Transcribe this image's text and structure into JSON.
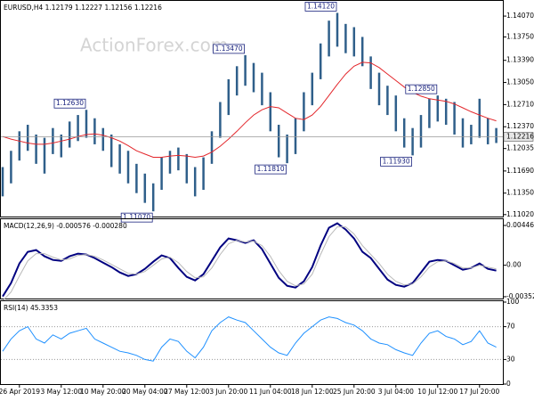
{
  "chart_data": [
    {
      "type": "range",
      "title": "EURUSD,H4  1.12179 1.12227 1.12156 1.12216",
      "watermark": "ActionForex.com",
      "color": "#2f5f8a",
      "high": [
        1.1175,
        1.12,
        1.123,
        1.124,
        1.1225,
        1.122,
        1.1235,
        1.1225,
        1.1245,
        1.1255,
        1.1263,
        1.125,
        1.1235,
        1.1225,
        1.121,
        1.12,
        1.118,
        1.1165,
        1.115,
        1.119,
        1.12,
        1.1205,
        1.1195,
        1.1175,
        1.119,
        1.123,
        1.1275,
        1.131,
        1.133,
        1.1347,
        1.1335,
        1.132,
        1.129,
        1.124,
        1.1225,
        1.125,
        1.129,
        1.132,
        1.1365,
        1.14,
        1.1412,
        1.1395,
        1.139,
        1.1375,
        1.1345,
        1.132,
        1.13,
        1.1285,
        1.125,
        1.1235,
        1.1255,
        1.128,
        1.1285,
        1.128,
        1.1275,
        1.125,
        1.124,
        1.128,
        1.125,
        1.1235
      ],
      "low": [
        1.113,
        1.115,
        1.1185,
        1.12,
        1.118,
        1.1165,
        1.1195,
        1.119,
        1.1205,
        1.1215,
        1.122,
        1.121,
        1.12,
        1.1175,
        1.1165,
        1.115,
        1.1135,
        1.112,
        1.1107,
        1.114,
        1.1165,
        1.117,
        1.115,
        1.113,
        1.114,
        1.118,
        1.122,
        1.1255,
        1.1285,
        1.13,
        1.129,
        1.127,
        1.123,
        1.119,
        1.1181,
        1.1195,
        1.123,
        1.127,
        1.131,
        1.1345,
        1.136,
        1.135,
        1.1345,
        1.133,
        1.1295,
        1.127,
        1.1255,
        1.123,
        1.1205,
        1.1193,
        1.1205,
        1.1235,
        1.1245,
        1.124,
        1.1225,
        1.1205,
        1.121,
        1.122,
        1.121,
        1.1212
      ],
      "overlay": {
        "color": "#e3262b",
        "values": [
          1.1222,
          1.1218,
          1.1215,
          1.1212,
          1.121,
          1.121,
          1.1212,
          1.1215,
          1.1218,
          1.1222,
          1.1225,
          1.1226,
          1.1224,
          1.122,
          1.1215,
          1.1208,
          1.12,
          1.1195,
          1.119,
          1.119,
          1.1192,
          1.1193,
          1.1192,
          1.119,
          1.1192,
          1.1198,
          1.1207,
          1.1218,
          1.123,
          1.1243,
          1.1255,
          1.1263,
          1.1268,
          1.1266,
          1.1258,
          1.125,
          1.1248,
          1.1255,
          1.1268,
          1.1285,
          1.1302,
          1.1318,
          1.133,
          1.1336,
          1.1335,
          1.1328,
          1.1318,
          1.1308,
          1.1298,
          1.129,
          1.1284,
          1.128,
          1.1278,
          1.1276,
          1.1272,
          1.1266,
          1.126,
          1.1255,
          1.125,
          1.1246
        ]
      },
      "annotations": [
        {
          "index": 10,
          "value": 1.1263,
          "label": "1.12630"
        },
        {
          "index": 18,
          "value": 1.1107,
          "label": "1.11070"
        },
        {
          "index": 29,
          "value": 1.1347,
          "label": "1.13470"
        },
        {
          "index": 34,
          "value": 1.1181,
          "label": "1.11810"
        },
        {
          "index": 40,
          "value": 1.1412,
          "label": "1.14120"
        },
        {
          "index": 49,
          "value": 1.1193,
          "label": "1.11930"
        },
        {
          "index": 52,
          "value": 1.1285,
          "label": "1.12850"
        }
      ],
      "last": {
        "value": 1.12216,
        "label": "1.12216"
      },
      "ylim": [
        1.1099,
        1.1429
      ],
      "yticks": [
        {
          "value": 1.1407,
          "label": "1.14070"
        },
        {
          "value": 1.1375,
          "label": "1.13750"
        },
        {
          "value": 1.1339,
          "label": "1.13390"
        },
        {
          "value": 1.1305,
          "label": "1.13050"
        },
        {
          "value": 1.1271,
          "label": "1.12710"
        },
        {
          "value": 1.1237,
          "label": "1.12370"
        },
        {
          "value": 1.12035,
          "label": "1.12035"
        },
        {
          "value": 1.1169,
          "label": "1.11690"
        },
        {
          "value": 1.1135,
          "label": "1.11350"
        },
        {
          "value": 1.1102,
          "label": "1.11020"
        }
      ]
    },
    {
      "type": "line",
      "title": "MACD(12,26,9) -0.000576 -0.000280",
      "series": [
        {
          "color": "#000080",
          "width": 2,
          "values": [
            -0.0035,
            -0.002,
            0.0002,
            0.0015,
            0.0017,
            0.001,
            0.0006,
            0.0005,
            0.001,
            0.0013,
            0.0012,
            0.0008,
            0.0003,
            -0.0002,
            -0.0008,
            -0.0012,
            -0.001,
            -0.0004,
            0.0004,
            0.0011,
            0.0008,
            -0.0003,
            -0.0013,
            -0.0017,
            -0.001,
            0.0005,
            0.002,
            0.003,
            0.0028,
            0.0025,
            0.0028,
            0.0018,
            0.0002,
            -0.0014,
            -0.0023,
            -0.0025,
            -0.0018,
            -0.0002,
            0.0022,
            0.0042,
            0.0047,
            0.004,
            0.003,
            0.0015,
            0.0008,
            -0.0004,
            -0.0016,
            -0.0022,
            -0.0024,
            -0.002,
            -0.0008,
            0.0004,
            0.0006,
            0.0005,
            0,
            -0.0005,
            -0.0003,
            0.0002,
            -0.0004,
            -0.0006
          ]
        },
        {
          "color": "#b8b8b8",
          "width": 1,
          "values": [
            -0.004,
            -0.003,
            -0.0012,
            0.0005,
            0.0013,
            0.0013,
            0.0009,
            0.0006,
            0.0007,
            0.0011,
            0.0012,
            0.001,
            0.0006,
            0.0001,
            -0.0004,
            -0.0009,
            -0.001,
            -0.0007,
            0,
            0.0007,
            0.0009,
            0.0003,
            -0.0007,
            -0.0014,
            -0.0013,
            -0.0003,
            0.0012,
            0.0024,
            0.0028,
            0.0026,
            0.0027,
            0.0022,
            0.001,
            -0.0006,
            -0.0018,
            -0.0023,
            -0.0021,
            -0.001,
            0.0012,
            0.0032,
            0.0043,
            0.0043,
            0.0035,
            0.0022,
            0.0012,
            0.0002,
            -0.001,
            -0.0018,
            -0.0022,
            -0.0021,
            -0.0013,
            -0.0002,
            0.0004,
            0.0005,
            0.0002,
            -0.0003,
            -0.0003,
            0,
            -0.0002,
            -0.0004
          ]
        }
      ],
      "ylim": [
        -0.00373,
        0.00506
      ],
      "yticks": [
        0.004461,
        {
          "value": 0,
          "label": "0.00"
        },
        -0.003526
      ]
    },
    {
      "type": "line",
      "title": "RSI(14) 45.3353",
      "series": [
        {
          "color": "#1e90ff",
          "width": 1,
          "values": [
            40,
            55,
            65,
            70,
            55,
            50,
            60,
            55,
            62,
            65,
            68,
            55,
            50,
            45,
            40,
            38,
            35,
            30,
            28,
            45,
            55,
            52,
            40,
            32,
            45,
            65,
            75,
            82,
            78,
            75,
            65,
            55,
            45,
            38,
            35,
            50,
            62,
            70,
            78,
            82,
            80,
            75,
            72,
            65,
            55,
            50,
            48,
            42,
            38,
            35,
            50,
            62,
            65,
            58,
            55,
            48,
            52,
            65,
            50,
            45
          ]
        }
      ],
      "ylim": [
        0,
        100
      ],
      "yticks": [
        100,
        70,
        30,
        0
      ],
      "levels": [
        70,
        30
      ],
      "categories": [
        null,
        null,
        "26 Apr 2019",
        null,
        null,
        null,
        null,
        "3 May 12:00",
        null,
        null,
        null,
        null,
        "10 May 20:00",
        null,
        null,
        null,
        null,
        "20 May 04:00",
        null,
        null,
        null,
        null,
        "27 May 12:00",
        null,
        null,
        null,
        null,
        "3 Jun 20:00",
        null,
        null,
        null,
        null,
        "11 Jun 04:00",
        null,
        null,
        null,
        null,
        "18 Jun 12:00",
        null,
        null,
        null,
        null,
        "25 Jun 20:00",
        null,
        null,
        null,
        null,
        "3 Jul 04:00",
        null,
        null,
        null,
        null,
        "10 Jul 12:00",
        null,
        null,
        null,
        null,
        "17 Jul 20:00",
        null,
        null
      ]
    }
  ]
}
